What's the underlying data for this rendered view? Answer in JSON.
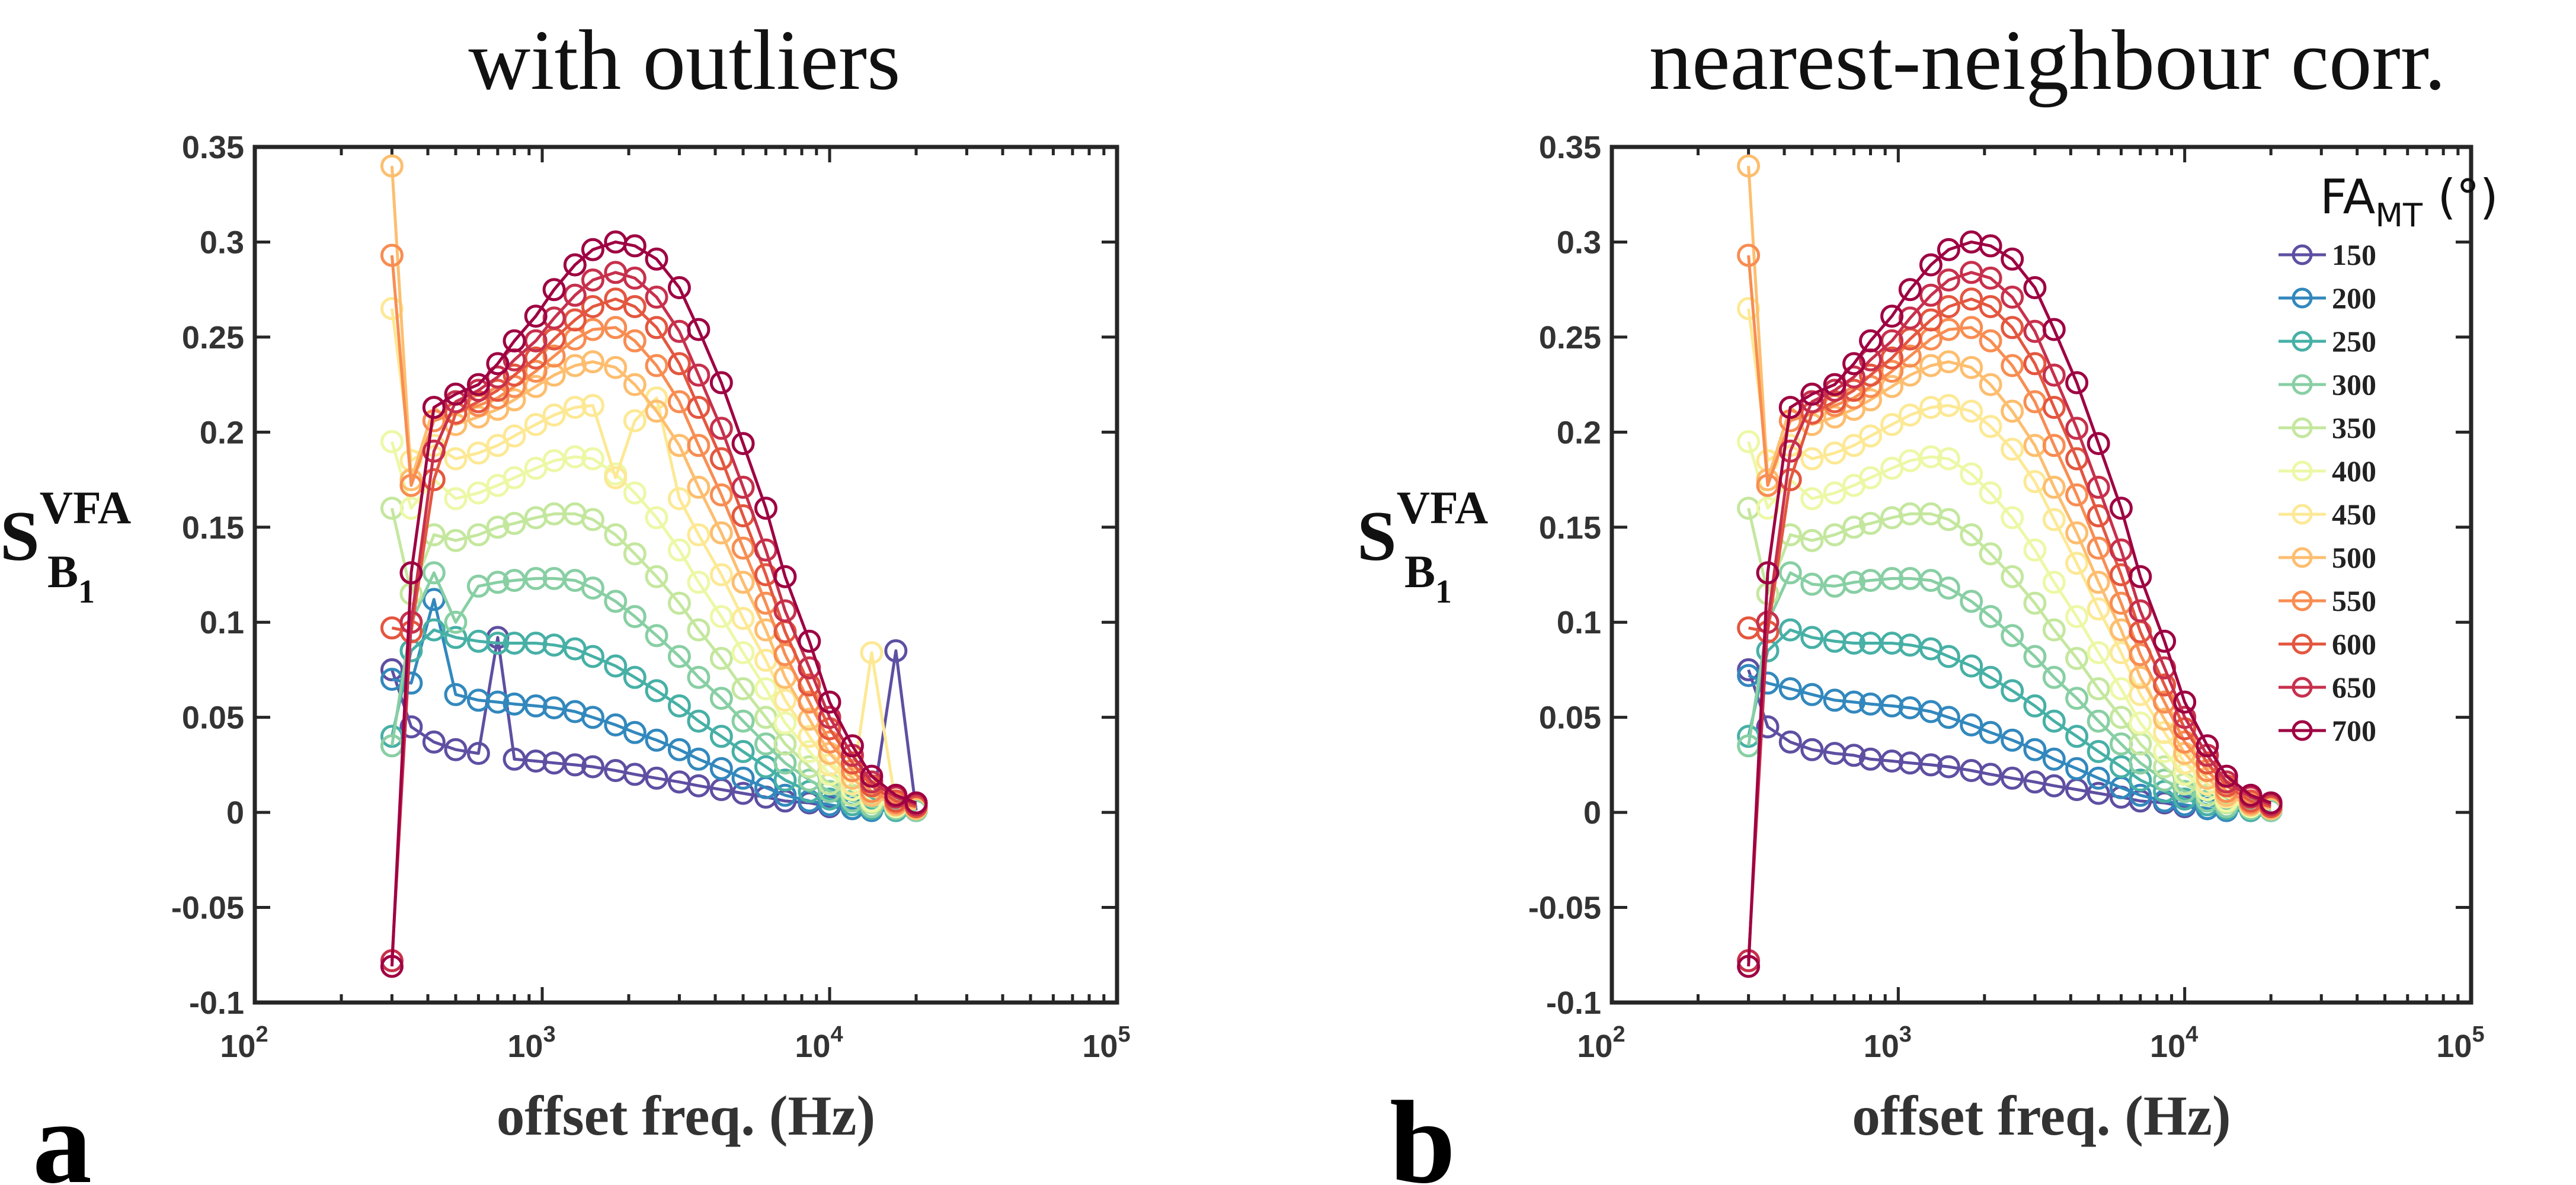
{
  "colors": {
    "150": "#5E4FA2",
    "200": "#3288BD",
    "250": "#47B0A6",
    "300": "#88CFA4",
    "350": "#C4E79E",
    "400": "#EDF8A6",
    "450": "#FDE995",
    "500": "#FDBE6F",
    "550": "#F88D52",
    "600": "#E4563F",
    "650": "#C7304C",
    "700": "#9E0142"
  },
  "chart_data": [
    {
      "type": "line",
      "panel_letter": "a",
      "title": "with outliers",
      "xlabel": "offset freq. (Hz)",
      "ylabel": {
        "main": "S",
        "sup": "VFA",
        "sub": "B",
        "subsub": "1"
      },
      "xscale": "log",
      "xlim": [
        100,
        100000
      ],
      "ylim": [
        -0.1,
        0.35
      ],
      "xticks": [
        {
          "base": "10",
          "exp": "2",
          "value": 100
        },
        {
          "base": "10",
          "exp": "3",
          "value": 1000
        },
        {
          "base": "10",
          "exp": "4",
          "value": 10000
        },
        {
          "base": "10",
          "exp": "5",
          "value": 100000
        }
      ],
      "yticks": [
        "-0.1",
        "-0.05",
        "0",
        "0.05",
        "0.1",
        "0.15",
        "0.2",
        "0.25",
        "0.3",
        "0.35"
      ],
      "x": [
        300,
        350,
        420,
        500,
        600,
        700,
        800,
        950,
        1100,
        1300,
        1500,
        1800,
        2100,
        2500,
        3000,
        3500,
        4200,
        5000,
        6000,
        7000,
        8500,
        10000,
        12000,
        14000,
        17000,
        20000
      ],
      "series": [
        {
          "name": "150",
          "values": [
            0.075,
            0.045,
            0.037,
            0.033,
            0.031,
            0.092,
            0.028,
            0.027,
            0.026,
            0.025,
            0.024,
            0.022,
            0.02,
            0.018,
            0.016,
            0.014,
            0.012,
            0.01,
            0.008,
            0.006,
            0.005,
            0.003,
            0.002,
            0.001,
            0.085,
            0.001
          ]
        },
        {
          "name": "200",
          "values": [
            0.07,
            0.068,
            0.112,
            0.062,
            0.059,
            0.058,
            0.057,
            0.056,
            0.055,
            0.053,
            0.05,
            0.046,
            0.042,
            0.038,
            0.033,
            0.028,
            0.023,
            0.018,
            0.013,
            0.009,
            0.006,
            0.004,
            0.002,
            0.001,
            0.001,
            0.001
          ]
        },
        {
          "name": "250",
          "values": [
            0.04,
            0.085,
            0.096,
            0.092,
            0.09,
            0.089,
            0.089,
            0.089,
            0.088,
            0.086,
            0.082,
            0.077,
            0.071,
            0.064,
            0.056,
            0.048,
            0.04,
            0.032,
            0.024,
            0.017,
            0.011,
            0.007,
            0.004,
            0.002,
            0.001,
            0.001
          ]
        },
        {
          "name": "300",
          "values": [
            0.035,
            0.1,
            0.126,
            0.1,
            0.119,
            0.121,
            0.122,
            0.123,
            0.123,
            0.122,
            0.118,
            0.111,
            0.103,
            0.093,
            0.082,
            0.071,
            0.06,
            0.048,
            0.036,
            0.026,
            0.017,
            0.011,
            0.006,
            0.003,
            0.002,
            0.001
          ]
        },
        {
          "name": "350",
          "values": [
            0.16,
            0.115,
            0.146,
            0.143,
            0.146,
            0.15,
            0.152,
            0.155,
            0.157,
            0.157,
            0.154,
            0.146,
            0.136,
            0.124,
            0.11,
            0.096,
            0.081,
            0.065,
            0.05,
            0.036,
            0.024,
            0.015,
            0.009,
            0.005,
            0.003,
            0.002
          ]
        },
        {
          "name": "400",
          "values": [
            0.195,
            0.16,
            0.175,
            0.165,
            0.168,
            0.172,
            0.176,
            0.181,
            0.185,
            0.187,
            0.186,
            0.178,
            0.168,
            0.155,
            0.138,
            0.121,
            0.103,
            0.084,
            0.065,
            0.047,
            0.032,
            0.02,
            0.012,
            0.006,
            0.003,
            0.002
          ]
        },
        {
          "name": "450",
          "values": [
            0.265,
            0.185,
            0.193,
            0.186,
            0.189,
            0.193,
            0.198,
            0.204,
            0.209,
            0.213,
            0.214,
            0.176,
            0.206,
            0.218,
            0.165,
            0.146,
            0.125,
            0.102,
            0.08,
            0.059,
            0.04,
            0.025,
            0.015,
            0.084,
            0.004,
            0.002
          ]
        },
        {
          "name": "500",
          "values": [
            0.34,
            0.175,
            0.213,
            0.204,
            0.208,
            0.212,
            0.217,
            0.224,
            0.23,
            0.235,
            0.237,
            0.234,
            0.225,
            0.211,
            0.193,
            0.171,
            0.147,
            0.121,
            0.096,
            0.071,
            0.049,
            0.031,
            0.018,
            0.009,
            0.004,
            0.002
          ]
        },
        {
          "name": "550",
          "values": [
            0.293,
            0.172,
            0.206,
            0.21,
            0.214,
            0.218,
            0.224,
            0.232,
            0.24,
            0.249,
            0.254,
            0.255,
            0.248,
            0.235,
            0.216,
            0.193,
            0.167,
            0.139,
            0.11,
            0.083,
            0.058,
            0.037,
            0.022,
            0.011,
            0.005,
            0.003
          ]
        },
        {
          "name": "600",
          "values": [
            0.097,
            0.095,
            0.175,
            0.21,
            0.216,
            0.222,
            0.23,
            0.239,
            0.249,
            0.259,
            0.266,
            0.27,
            0.266,
            0.255,
            0.236,
            0.213,
            0.186,
            0.156,
            0.125,
            0.095,
            0.067,
            0.044,
            0.026,
            0.014,
            0.006,
            0.003
          ]
        },
        {
          "name": "650",
          "values": [
            -0.078,
            0.1,
            0.19,
            0.216,
            0.222,
            0.229,
            0.238,
            0.248,
            0.26,
            0.272,
            0.28,
            0.284,
            0.281,
            0.271,
            0.253,
            0.23,
            0.202,
            0.171,
            0.138,
            0.106,
            0.076,
            0.05,
            0.03,
            0.016,
            0.008,
            0.004
          ]
        },
        {
          "name": "700",
          "values": [
            -0.081,
            0.126,
            0.213,
            0.22,
            0.225,
            0.236,
            0.248,
            0.261,
            0.275,
            0.288,
            0.296,
            0.3,
            0.298,
            0.291,
            0.276,
            0.254,
            0.226,
            0.194,
            0.16,
            0.124,
            0.09,
            0.058,
            0.035,
            0.019,
            0.009,
            0.005
          ]
        }
      ]
    },
    {
      "type": "line",
      "panel_letter": "b",
      "title": "nearest-neighbour corr.",
      "xlabel": "offset freq. (Hz)",
      "ylabel": {
        "main": "S",
        "sup": "VFA",
        "sub": "B",
        "subsub": "1"
      },
      "xscale": "log",
      "xlim": [
        100,
        100000
      ],
      "ylim": [
        -0.1,
        0.35
      ],
      "xticks": [
        {
          "base": "10",
          "exp": "2",
          "value": 100
        },
        {
          "base": "10",
          "exp": "3",
          "value": 1000
        },
        {
          "base": "10",
          "exp": "4",
          "value": 10000
        },
        {
          "base": "10",
          "exp": "5",
          "value": 100000
        }
      ],
      "yticks": [
        "-0.1",
        "-0.05",
        "0",
        "0.05",
        "0.1",
        "0.15",
        "0.2",
        "0.25",
        "0.3",
        "0.35"
      ],
      "legend": {
        "title_main": "FA",
        "title_sub": "MT",
        "title_unit": " (°)",
        "placement": "top-right"
      },
      "x": [
        300,
        350,
        420,
        500,
        600,
        700,
        800,
        950,
        1100,
        1300,
        1500,
        1800,
        2100,
        2500,
        3000,
        3500,
        4200,
        5000,
        6000,
        7000,
        8500,
        10000,
        12000,
        14000,
        17000,
        20000
      ],
      "series": [
        {
          "name": "150",
          "values": [
            0.075,
            0.045,
            0.037,
            0.033,
            0.031,
            0.03,
            0.028,
            0.027,
            0.026,
            0.025,
            0.024,
            0.022,
            0.02,
            0.018,
            0.016,
            0.014,
            0.012,
            0.01,
            0.008,
            0.006,
            0.005,
            0.003,
            0.002,
            0.001,
            0.001,
            0.001
          ]
        },
        {
          "name": "200",
          "values": [
            0.072,
            0.068,
            0.065,
            0.062,
            0.059,
            0.058,
            0.057,
            0.056,
            0.055,
            0.053,
            0.05,
            0.046,
            0.042,
            0.038,
            0.033,
            0.028,
            0.023,
            0.018,
            0.013,
            0.009,
            0.006,
            0.004,
            0.002,
            0.001,
            0.001,
            0.001
          ]
        },
        {
          "name": "250",
          "values": [
            0.04,
            0.085,
            0.096,
            0.092,
            0.09,
            0.089,
            0.089,
            0.089,
            0.088,
            0.086,
            0.082,
            0.077,
            0.071,
            0.064,
            0.056,
            0.048,
            0.04,
            0.032,
            0.024,
            0.017,
            0.011,
            0.007,
            0.004,
            0.002,
            0.001,
            0.001
          ]
        },
        {
          "name": "300",
          "values": [
            0.035,
            0.1,
            0.126,
            0.12,
            0.119,
            0.121,
            0.122,
            0.123,
            0.123,
            0.122,
            0.118,
            0.111,
            0.103,
            0.093,
            0.082,
            0.071,
            0.06,
            0.048,
            0.036,
            0.026,
            0.017,
            0.011,
            0.006,
            0.003,
            0.002,
            0.001
          ]
        },
        {
          "name": "350",
          "values": [
            0.16,
            0.115,
            0.146,
            0.143,
            0.146,
            0.15,
            0.152,
            0.155,
            0.157,
            0.157,
            0.154,
            0.146,
            0.136,
            0.124,
            0.11,
            0.096,
            0.081,
            0.065,
            0.05,
            0.036,
            0.024,
            0.015,
            0.009,
            0.005,
            0.003,
            0.002
          ]
        },
        {
          "name": "400",
          "values": [
            0.195,
            0.16,
            0.175,
            0.165,
            0.168,
            0.172,
            0.176,
            0.181,
            0.185,
            0.187,
            0.186,
            0.178,
            0.168,
            0.155,
            0.138,
            0.121,
            0.103,
            0.084,
            0.065,
            0.047,
            0.032,
            0.02,
            0.012,
            0.006,
            0.003,
            0.002
          ]
        },
        {
          "name": "450",
          "values": [
            0.265,
            0.185,
            0.193,
            0.186,
            0.189,
            0.193,
            0.198,
            0.204,
            0.209,
            0.213,
            0.214,
            0.211,
            0.203,
            0.191,
            0.174,
            0.154,
            0.131,
            0.107,
            0.084,
            0.062,
            0.042,
            0.026,
            0.015,
            0.008,
            0.004,
            0.002
          ]
        },
        {
          "name": "500",
          "values": [
            0.34,
            0.175,
            0.213,
            0.204,
            0.208,
            0.212,
            0.217,
            0.224,
            0.23,
            0.235,
            0.237,
            0.234,
            0.225,
            0.211,
            0.193,
            0.171,
            0.147,
            0.121,
            0.096,
            0.071,
            0.049,
            0.031,
            0.018,
            0.009,
            0.004,
            0.002
          ]
        },
        {
          "name": "550",
          "values": [
            0.293,
            0.172,
            0.206,
            0.21,
            0.214,
            0.218,
            0.224,
            0.232,
            0.24,
            0.249,
            0.254,
            0.255,
            0.248,
            0.235,
            0.216,
            0.193,
            0.167,
            0.139,
            0.11,
            0.083,
            0.058,
            0.037,
            0.022,
            0.011,
            0.005,
            0.003
          ]
        },
        {
          "name": "600",
          "values": [
            0.097,
            0.095,
            0.175,
            0.21,
            0.216,
            0.222,
            0.23,
            0.239,
            0.249,
            0.259,
            0.266,
            0.27,
            0.266,
            0.255,
            0.236,
            0.213,
            0.186,
            0.156,
            0.125,
            0.095,
            0.067,
            0.044,
            0.026,
            0.014,
            0.006,
            0.003
          ]
        },
        {
          "name": "650",
          "values": [
            -0.078,
            0.1,
            0.19,
            0.216,
            0.222,
            0.229,
            0.238,
            0.248,
            0.26,
            0.272,
            0.28,
            0.284,
            0.281,
            0.271,
            0.253,
            0.23,
            0.202,
            0.171,
            0.138,
            0.106,
            0.076,
            0.05,
            0.03,
            0.016,
            0.008,
            0.004
          ]
        },
        {
          "name": "700",
          "values": [
            -0.081,
            0.126,
            0.213,
            0.22,
            0.225,
            0.236,
            0.248,
            0.261,
            0.275,
            0.288,
            0.296,
            0.3,
            0.298,
            0.291,
            0.276,
            0.254,
            0.226,
            0.194,
            0.16,
            0.124,
            0.09,
            0.058,
            0.035,
            0.019,
            0.009,
            0.005
          ]
        }
      ]
    }
  ]
}
